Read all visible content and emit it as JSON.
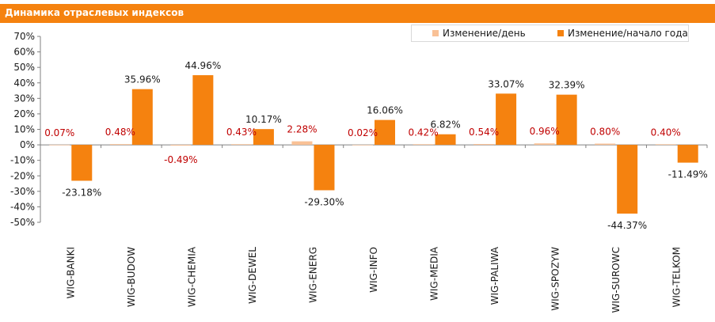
{
  "header": {
    "title": "Динамика отраслевых индексов"
  },
  "colors": {
    "header_bg": "#f5820f",
    "day": "#f9c196",
    "ytd": "#f5820f",
    "day_label": "#c00000",
    "ytd_label": "#1a1a1a"
  },
  "chart_data": {
    "type": "bar",
    "title": "Динамика отраслевых индексов",
    "categories": [
      "WIG-BANKI",
      "WIG-BUDOW",
      "WIG-CHEMIA",
      "WIG-DEWEL",
      "WIG-ENERG",
      "WIG-INFO",
      "WIG-MEDIA",
      "WIG-PALIWA",
      "WIG-SPOZYW",
      "WIG-SUROWC",
      "WIG-TELKOM"
    ],
    "series": [
      {
        "name": "Изменение/день",
        "values": [
          0.07,
          0.48,
          -0.49,
          0.43,
          2.28,
          0.02,
          0.42,
          0.54,
          0.96,
          0.8,
          0.4
        ],
        "labels": [
          "0.07%",
          "0.48%",
          "-0.49%",
          "0.43%",
          "2.28%",
          "0.02%",
          "0.42%",
          "0.54%",
          "0.96%",
          "0.80%",
          "0.40%"
        ]
      },
      {
        "name": "Изменение/начало года",
        "values": [
          -23.18,
          35.96,
          44.96,
          10.17,
          -29.3,
          16.06,
          6.82,
          33.07,
          32.39,
          -44.37,
          -11.49
        ],
        "labels": [
          "-23.18%",
          "35.96%",
          "44.96%",
          "10.17%",
          "-29.30%",
          "16.06%",
          "6.82%",
          "33.07%",
          "32.39%",
          "-44.37%",
          "-11.49%"
        ]
      }
    ],
    "ylim": [
      -50,
      70
    ],
    "yticks": [
      "70%",
      "60%",
      "50%",
      "40%",
      "30%",
      "20%",
      "10%",
      "0%",
      "-10%",
      "-20%",
      "-30%",
      "-40%",
      "-50%"
    ],
    "ytick_values": [
      70,
      60,
      50,
      40,
      30,
      20,
      10,
      0,
      -10,
      -20,
      -30,
      -40,
      -50
    ],
    "legend": "top-right",
    "grid": false
  }
}
